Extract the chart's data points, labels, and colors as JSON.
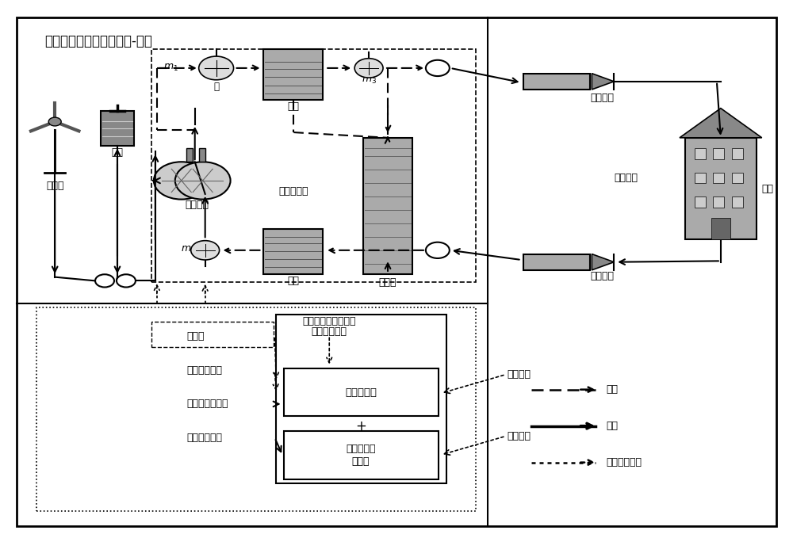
{
  "title": "基于可再生能源的混合热-电站",
  "bg_color": "#ffffff",
  "labels": {
    "fengliji": "风力机",
    "dianchi": "电池",
    "diānrèguōlú": "电热锅炉",
    "zhànnèi": "站内热循环",
    "huàrèqì": "换热器",
    "règuàn": "热罐",
    "lěngguàn": "冷罐",
    "bèng": "泵",
    "gōngshuǐguǎndào": "供水管道",
    "gōngshuǐguǎnwǎng": "供水管网",
    "huíshuǐguǎndào": "回水管道",
    "yònghù": "用户",
    "bèngtiáojié": "泵调节",
    "biànhuànqízhànkōngbǐ": "变换器占空比",
    "biànhuànqídiàngǎndiànliú": "变换器电感电流",
    "zhíliúmǔxiàn": "直流母线电压",
    "zhànnèirèxúnhuán1": "站内热循环内各处液",
    "zhànnèirèxúnhuán2": "位高度和温度",
    "gōngshuǐwēndù": "供水温度",
    "shìwàiwēndù": "屋外温度",
    "rènéngkòngzhì": "热能流控制",
    "xūnǐkòngzhì1": "虚拟直流电",
    "xūnǐkòngzhì2": "机控制",
    "legend_re": "热能",
    "legend_dian": "电能",
    "legend_shiji": "实际检测信息"
  }
}
